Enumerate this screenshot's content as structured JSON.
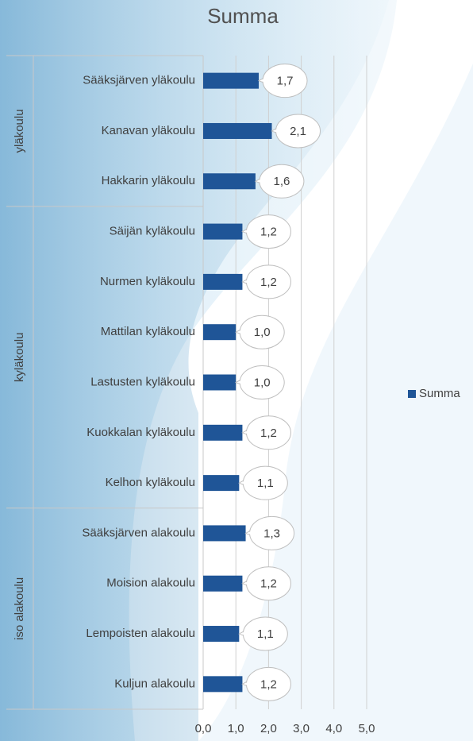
{
  "chart_data": {
    "type": "bar",
    "orientation": "horizontal",
    "title": "Summa",
    "categories": [
      "Sääksjärven yläkoulu",
      "Kanavan yläkoulu",
      "Hakkarin yläkoulu",
      "Säijän kyläkoulu",
      "Nurmen kyläkoulu",
      "Mattilan kyläkoulu",
      "Lastusten kyläkoulu",
      "Kuokkalan kyläkoulu",
      "Kelhon kyläkoulu",
      "Sääksjärven alakoulu",
      "Moision alakoulu",
      "Lempoisten alakoulu",
      "Kuljun alakoulu"
    ],
    "category_groups": [
      "yläkoulu",
      "yläkoulu",
      "yläkoulu",
      "kyläkoulu",
      "kyläkoulu",
      "kyläkoulu",
      "kyläkoulu",
      "kyläkoulu",
      "kyläkoulu",
      "iso alakoulu",
      "iso alakoulu",
      "iso alakoulu",
      "iso alakoulu"
    ],
    "series": [
      {
        "name": "Summa",
        "color": "#1f5597",
        "values": [
          1.7,
          2.1,
          1.6,
          1.2,
          1.2,
          1.0,
          1.0,
          1.2,
          1.1,
          1.3,
          1.2,
          1.1,
          1.2
        ],
        "value_labels": [
          "1,7",
          "2,1",
          "1,6",
          "1,2",
          "1,2",
          "1,0",
          "1,0",
          "1,2",
          "1,1",
          "1,3",
          "1,2",
          "1,1",
          "1,2"
        ]
      }
    ],
    "xlim": [
      0,
      5
    ],
    "xticks": [
      {
        "value": 0,
        "label": "0,0"
      },
      {
        "value": 1,
        "label": "1,0"
      },
      {
        "value": 2,
        "label": "2,0"
      },
      {
        "value": 3,
        "label": "3,0"
      },
      {
        "value": 4,
        "label": "4,0"
      },
      {
        "value": 5,
        "label": "5,0"
      }
    ],
    "grid": true,
    "legend": "right"
  }
}
